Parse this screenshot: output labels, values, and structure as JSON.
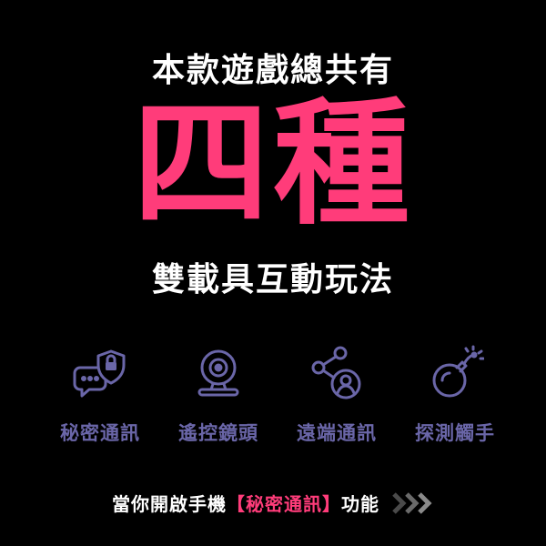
{
  "headline": {
    "top": "本款遊戲總共有",
    "big": "四種",
    "bottom": "雙載具互動玩法"
  },
  "features": [
    {
      "icon": "secure-chat-icon",
      "label": "秘密通訊"
    },
    {
      "icon": "webcam-icon",
      "label": "遙控鏡頭"
    },
    {
      "icon": "share-user-icon",
      "label": "遠端通訊"
    },
    {
      "icon": "bomb-icon",
      "label": "探測觸手"
    }
  ],
  "cta": {
    "prefix": "當你開啟手機",
    "highlight": "【秘密通訊】",
    "suffix": "功能",
    "arrow_icon": "triple-chevron-right-icon"
  },
  "colors": {
    "background": "#000000",
    "accent": "#ff3c7a",
    "icon": "#6a66a8",
    "text": "#ffffff"
  }
}
